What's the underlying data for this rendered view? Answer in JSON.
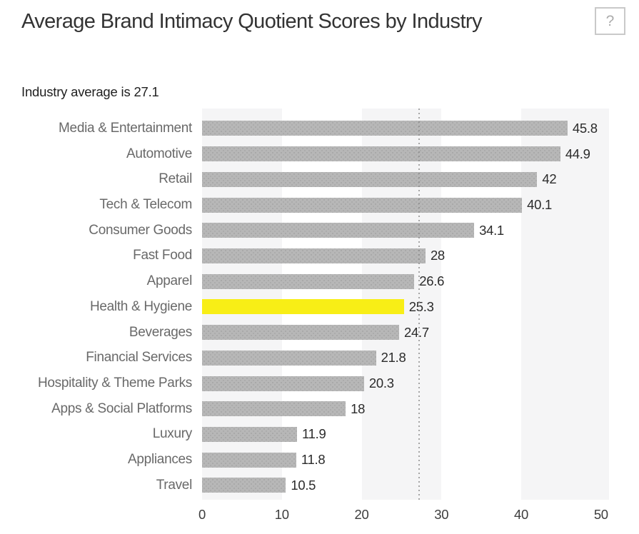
{
  "header": {
    "title": "Average Brand Intimacy Quotient Scores by Industry",
    "help_label": "?"
  },
  "subtitle": "Industry average is 27.1",
  "chart_data": {
    "type": "bar",
    "orientation": "horizontal",
    "title": "Average Brand Intimacy Quotient Scores by Industry",
    "subtitle": "Industry average is 27.1",
    "categories": [
      "Media & Entertainment",
      "Automotive",
      "Retail",
      "Tech & Telecom",
      "Consumer Goods",
      "Fast Food",
      "Apparel",
      "Health & Hygiene",
      "Beverages",
      "Financial Services",
      "Hospitality & Theme Parks",
      "Apps & Social Platforms",
      "Luxury",
      "Appliances",
      "Travel"
    ],
    "values": [
      45.8,
      44.9,
      42,
      40.1,
      34.1,
      28,
      26.6,
      25.3,
      24.7,
      21.8,
      20.3,
      18,
      11.9,
      11.8,
      10.5
    ],
    "value_labels": [
      "45.8",
      "44.9",
      "42",
      "40.1",
      "34.1",
      "28",
      "26.6",
      "25.3",
      "24.7",
      "21.8",
      "20.3",
      "18",
      "11.9",
      "11.8",
      "10.5"
    ],
    "highlight_category": "Health & Hygiene",
    "industry_average": 27.1,
    "xlabel": "",
    "ylabel": "",
    "xlim": [
      0,
      51
    ],
    "x_ticks": [
      0,
      10,
      20,
      30,
      40,
      50
    ],
    "background_bands": [
      [
        0,
        10
      ],
      [
        20,
        30
      ],
      [
        40,
        51
      ]
    ],
    "legend": "none",
    "grid": "off",
    "colors": {
      "bar": "#b7b7b7",
      "highlight": "#f8ee16",
      "band": "#f5f5f6",
      "average_line": "#8b8b8b",
      "category_label": "#696969",
      "value_label": "#2b2b2b",
      "tick_label": "#3d3d3d",
      "title": "#333333"
    }
  }
}
